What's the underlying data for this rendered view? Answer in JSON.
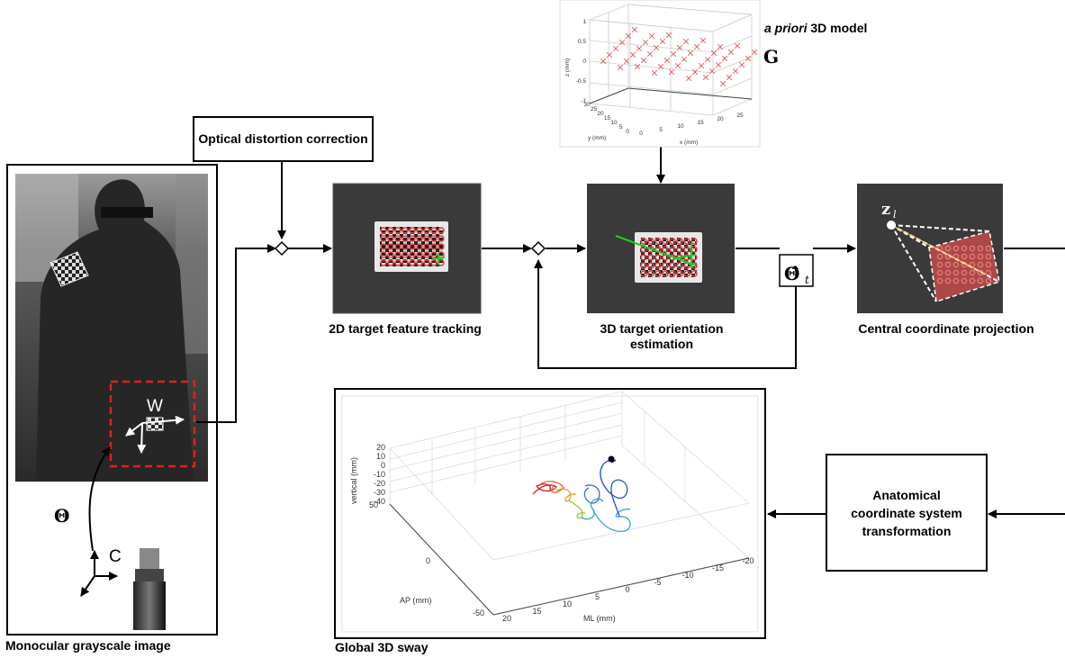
{
  "blocks": {
    "optical": "Optical distortion correction",
    "anatomical": "Anatomical coordinate system transformation"
  },
  "labels": {
    "monocular": "Monocular grayscale image",
    "tracking": "2D target feature tracking",
    "orientation": "3D target orientation estimation",
    "projection": "Central coordinate projection",
    "sway": "Global 3D sway",
    "model_italic": "a priori",
    "model_rest": " 3D model",
    "G": "G",
    "W": "W",
    "C": "C",
    "Theta": "Θ",
    "ThetaHat": "Θ̂",
    "ThetaHatSub": "t",
    "z": "z",
    "zsub": "l"
  },
  "model_plot": {
    "zlabel": "z (mm)",
    "ylabel": "y (mm)",
    "xlabel": "x (mm)",
    "zticks": [
      "1",
      "0.5",
      "0",
      "-0.5",
      "-1"
    ],
    "yticks": [
      "30",
      "25",
      "20",
      "15",
      "10",
      "5",
      "0"
    ],
    "xticks": [
      "0",
      "5",
      "10",
      "15",
      "20",
      "25"
    ]
  },
  "sway_plot": {
    "zlabel": "vertical (mm)",
    "ylabel": "AP (mm)",
    "xlabel": "ML (mm)",
    "zticks": [
      "20",
      "10",
      "0",
      "-10",
      "-20",
      "-30",
      "-40"
    ],
    "yticks": [
      "50",
      "0",
      "-50"
    ],
    "xticks": [
      "20",
      "15",
      "10",
      "5",
      "0",
      "-5",
      "-10",
      "-15",
      "-20"
    ]
  },
  "colors": {
    "marker": "#e43b3b",
    "target_fill": "#b84b4b",
    "track_line": "#22cc22",
    "photo_bg": "#3a3a3a"
  }
}
